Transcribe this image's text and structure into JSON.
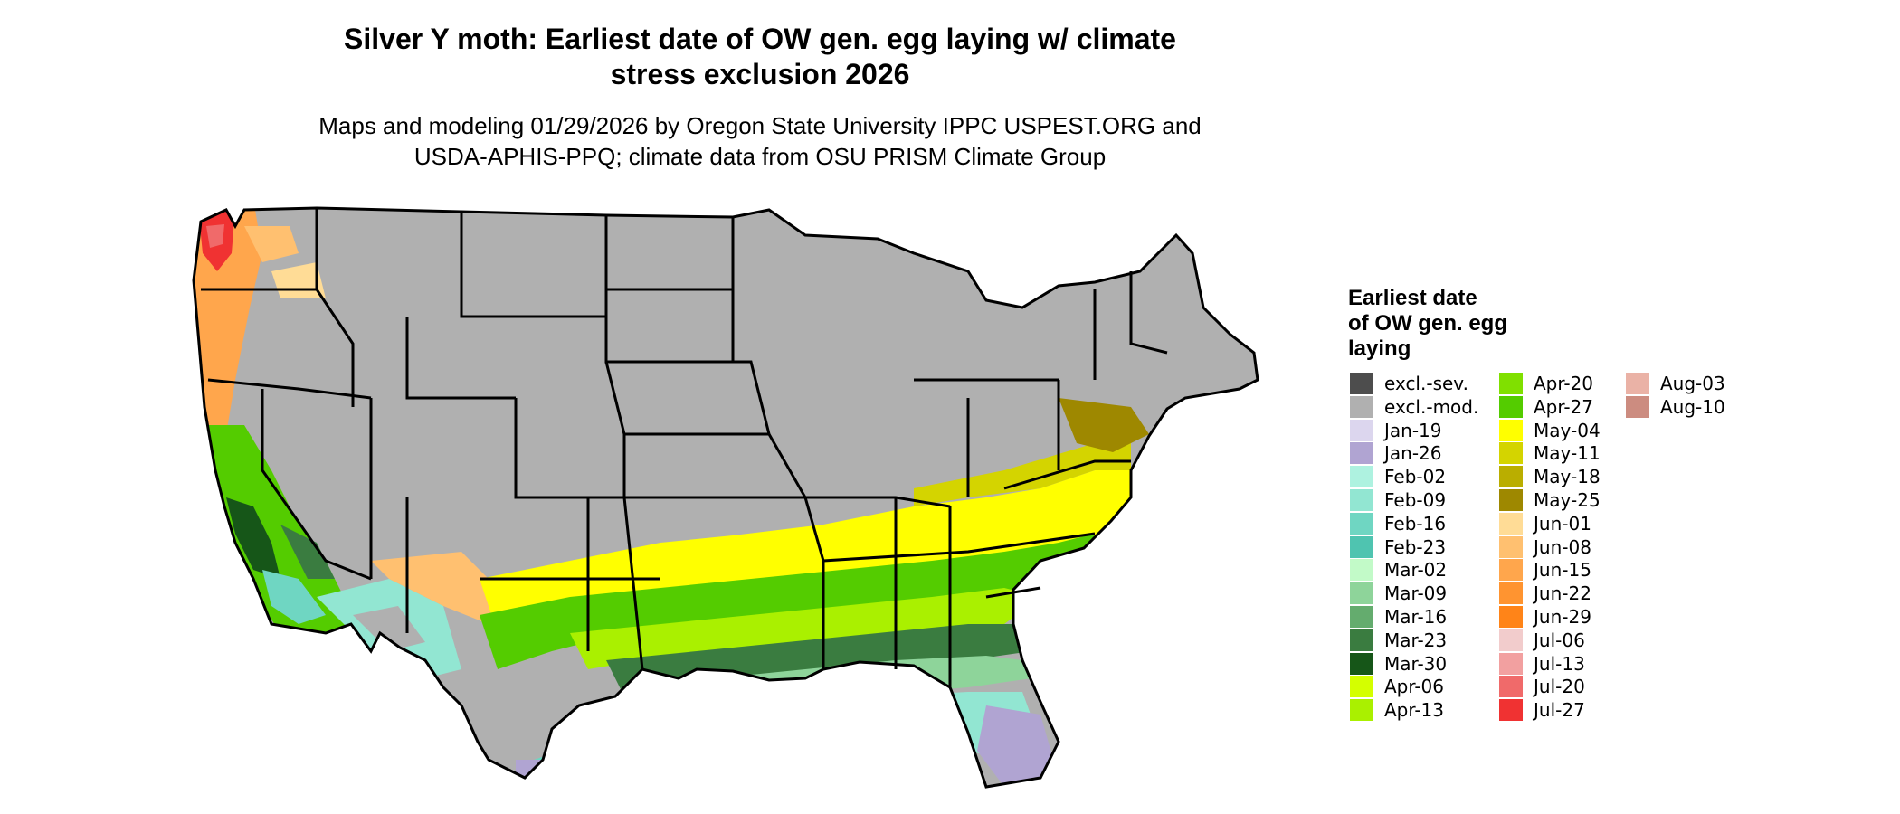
{
  "title_lines": [
    "Silver Y moth: Earliest date of OW gen. egg laying w/ climate",
    "stress exclusion 2026"
  ],
  "subtitle_lines": [
    "Maps and modeling 01/29/2026 by Oregon State University IPPC USPEST.ORG and",
    "USDA-APHIS-PPQ; climate data from OSU PRISM Climate Group"
  ],
  "legend": {
    "title_lines": [
      "Earliest date",
      "of OW gen. egg",
      "laying"
    ],
    "items": [
      {
        "label": "excl.-sev.",
        "color": "#4d4d4d"
      },
      {
        "label": "excl.-mod.",
        "color": "#b0b0b0"
      },
      {
        "label": "Jan-19",
        "color": "#dcd6ee"
      },
      {
        "label": "Jan-26",
        "color": "#b0a4d2"
      },
      {
        "label": "Feb-02",
        "color": "#aef2e0"
      },
      {
        "label": "Feb-09",
        "color": "#92e6d2"
      },
      {
        "label": "Feb-16",
        "color": "#6fd6c2"
      },
      {
        "label": "Feb-23",
        "color": "#4fc4b0"
      },
      {
        "label": "Mar-02",
        "color": "#c2fac8"
      },
      {
        "label": "Mar-09",
        "color": "#8ed49a"
      },
      {
        "label": "Mar-16",
        "color": "#64ac6e"
      },
      {
        "label": "Mar-23",
        "color": "#3a7c40"
      },
      {
        "label": "Mar-30",
        "color": "#165618"
      },
      {
        "label": "Apr-06",
        "color": "#d4ff00"
      },
      {
        "label": "Apr-13",
        "color": "#aaf000"
      },
      {
        "label": "Apr-20",
        "color": "#80e000"
      },
      {
        "label": "Apr-27",
        "color": "#54cc00"
      },
      {
        "label": "May-04",
        "color": "#ffff00"
      },
      {
        "label": "May-11",
        "color": "#d4d400"
      },
      {
        "label": "May-18",
        "color": "#baae00"
      },
      {
        "label": "May-25",
        "color": "#9e8800"
      },
      {
        "label": "Jun-01",
        "color": "#ffdc96"
      },
      {
        "label": "Jun-08",
        "color": "#ffc070"
      },
      {
        "label": "Jun-15",
        "color": "#ffa64c"
      },
      {
        "label": "Jun-22",
        "color": "#ff9430"
      },
      {
        "label": "Jun-29",
        "color": "#ff8418"
      },
      {
        "label": "Jul-06",
        "color": "#f2cccc"
      },
      {
        "label": "Jul-13",
        "color": "#f2a0a0"
      },
      {
        "label": "Jul-20",
        "color": "#f06a6a"
      },
      {
        "label": "Jul-27",
        "color": "#f03232"
      },
      {
        "label": "Aug-03",
        "color": "#eab2a6"
      },
      {
        "label": "Aug-10",
        "color": "#cc8c80"
      }
    ]
  }
}
